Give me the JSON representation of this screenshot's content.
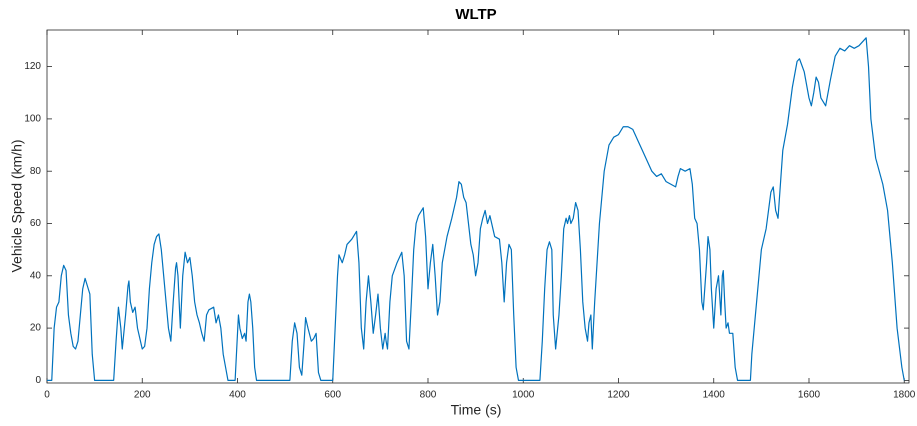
{
  "chart_data": {
    "type": "line",
    "title": "WLTP",
    "xlabel": "Time (s)",
    "ylabel": "Vehicle Speed (km/h)",
    "color": "#0072bd",
    "xlim": [
      0,
      1810
    ],
    "ylim": [
      -1,
      134
    ],
    "xticks": [
      0,
      200,
      400,
      600,
      800,
      1000,
      1200,
      1400,
      1600,
      1800
    ],
    "yticks": [
      0,
      20,
      40,
      60,
      80,
      100,
      120
    ],
    "grid": false,
    "x": [
      0,
      10,
      15,
      20,
      25,
      30,
      35,
      40,
      45,
      50,
      55,
      60,
      65,
      70,
      75,
      80,
      85,
      90,
      95,
      100,
      140,
      145,
      150,
      155,
      158,
      165,
      170,
      172,
      175,
      180,
      185,
      190,
      200,
      205,
      210,
      215,
      220,
      225,
      230,
      235,
      240,
      245,
      250,
      255,
      260,
      265,
      270,
      272,
      275,
      280,
      285,
      290,
      295,
      300,
      305,
      310,
      315,
      320,
      325,
      330,
      335,
      340,
      350,
      355,
      360,
      365,
      370,
      375,
      380,
      395,
      400,
      402,
      405,
      410,
      415,
      418,
      422,
      425,
      428,
      432,
      436,
      440,
      510,
      515,
      520,
      525,
      530,
      535,
      540,
      543,
      548,
      555,
      560,
      565,
      570,
      575,
      600,
      605,
      610,
      613,
      620,
      625,
      630,
      640,
      650,
      655,
      660,
      665,
      670,
      675,
      680,
      685,
      690,
      695,
      700,
      705,
      710,
      712,
      715,
      720,
      725,
      735,
      745,
      750,
      755,
      760,
      765,
      770,
      775,
      780,
      790,
      795,
      800,
      805,
      810,
      815,
      820,
      825,
      830,
      840,
      850,
      860,
      865,
      870,
      875,
      880,
      885,
      890,
      895,
      900,
      905,
      910,
      915,
      920,
      925,
      930,
      940,
      950,
      955,
      960,
      965,
      970,
      975,
      980,
      985,
      990,
      1030,
      1035,
      1040,
      1045,
      1050,
      1055,
      1060,
      1063,
      1068,
      1075,
      1080,
      1085,
      1090,
      1093,
      1097,
      1100,
      1105,
      1110,
      1115,
      1120,
      1125,
      1130,
      1135,
      1138,
      1142,
      1145,
      1150,
      1160,
      1170,
      1180,
      1190,
      1200,
      1210,
      1220,
      1230,
      1240,
      1250,
      1260,
      1270,
      1280,
      1290,
      1300,
      1310,
      1320,
      1325,
      1330,
      1340,
      1350,
      1355,
      1360,
      1365,
      1370,
      1375,
      1378,
      1385,
      1388,
      1392,
      1395,
      1400,
      1405,
      1410,
      1415,
      1418,
      1420,
      1423,
      1426,
      1430,
      1433,
      1440,
      1445,
      1450,
      1477,
      1480,
      1490,
      1500,
      1510,
      1515,
      1520,
      1525,
      1530,
      1535,
      1540,
      1545,
      1555,
      1565,
      1575,
      1580,
      1590,
      1600,
      1605,
      1610,
      1615,
      1620,
      1625,
      1635,
      1645,
      1655,
      1665,
      1675,
      1685,
      1695,
      1705,
      1715,
      1720,
      1725,
      1730,
      1740,
      1755,
      1765,
      1775,
      1785,
      1795,
      1800
    ],
    "values": [
      0,
      0,
      20,
      28,
      30,
      40,
      44,
      42,
      25,
      18,
      13,
      12,
      15,
      25,
      35,
      39,
      36,
      33,
      10,
      0,
      0,
      15,
      28,
      20,
      12,
      25,
      36,
      38,
      30,
      26,
      28,
      20,
      12,
      13,
      20,
      35,
      45,
      52,
      55,
      56,
      50,
      40,
      30,
      20,
      15,
      30,
      43,
      45,
      40,
      20,
      40,
      49,
      45,
      47,
      40,
      30,
      25,
      22,
      18,
      15,
      25,
      27,
      28,
      22,
      25,
      20,
      10,
      5,
      0,
      0,
      18,
      25,
      20,
      16,
      18,
      15,
      30,
      33,
      30,
      20,
      5,
      0,
      0,
      15,
      22,
      18,
      5,
      2,
      15,
      24,
      20,
      15,
      16,
      18,
      3,
      0,
      0,
      20,
      40,
      48,
      45,
      48,
      52,
      54,
      57,
      45,
      20,
      12,
      30,
      40,
      30,
      18,
      25,
      33,
      20,
      12,
      18,
      15,
      12,
      30,
      40,
      45,
      49,
      40,
      15,
      12,
      30,
      50,
      60,
      63,
      66,
      55,
      35,
      45,
      52,
      40,
      25,
      30,
      45,
      55,
      62,
      70,
      76,
      75,
      70,
      68,
      60,
      52,
      48,
      40,
      45,
      58,
      62,
      65,
      60,
      63,
      55,
      54,
      45,
      30,
      45,
      52,
      50,
      25,
      5,
      0,
      0,
      0,
      15,
      35,
      50,
      53,
      50,
      25,
      12,
      25,
      40,
      58,
      62,
      60,
      63,
      60,
      62,
      68,
      65,
      50,
      30,
      20,
      15,
      22,
      25,
      12,
      30,
      60,
      80,
      90,
      93,
      94,
      97,
      97,
      96,
      92,
      88,
      84,
      80,
      78,
      79,
      76,
      75,
      74,
      78,
      81,
      80,
      81,
      75,
      62,
      60,
      50,
      30,
      27,
      45,
      55,
      50,
      35,
      20,
      35,
      40,
      25,
      40,
      42,
      30,
      20,
      22,
      18,
      18,
      5,
      0,
      0,
      10,
      30,
      50,
      58,
      65,
      72,
      74,
      65,
      62,
      75,
      88,
      98,
      112,
      122,
      123,
      118,
      108,
      105,
      110,
      116,
      114,
      108,
      105,
      115,
      124,
      127,
      126,
      128,
      127,
      128,
      130,
      131,
      120,
      100,
      85,
      75,
      65,
      45,
      20,
      5,
      0
    ]
  }
}
